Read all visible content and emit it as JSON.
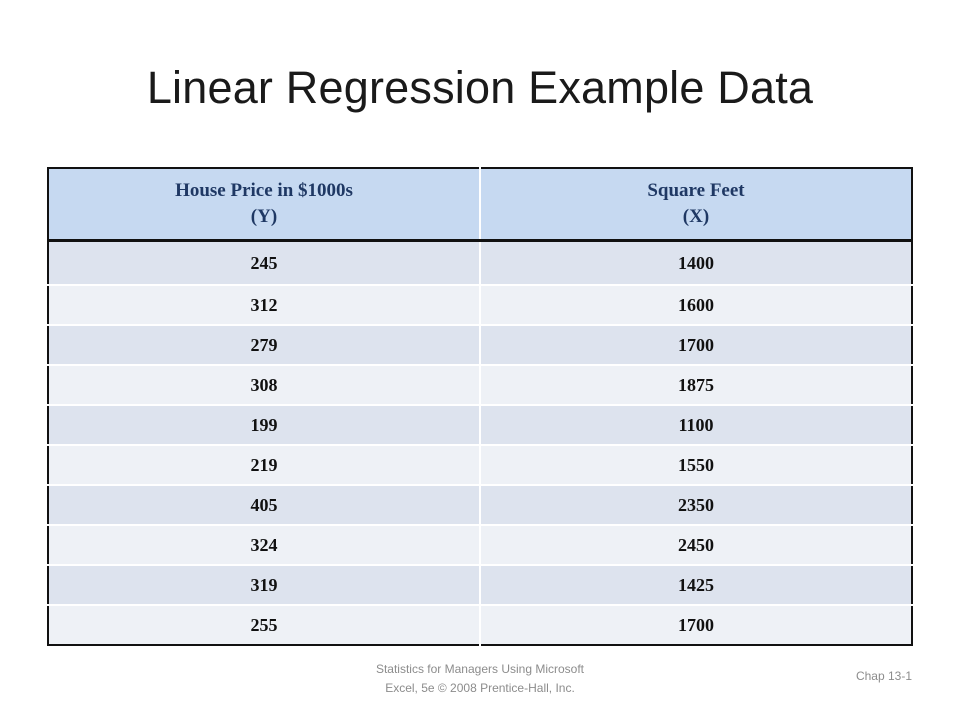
{
  "slide": {
    "title": "Linear Regression Example Data"
  },
  "table": {
    "headers": [
      {
        "line1": "House Price in $1000s",
        "line2": "(Y)"
      },
      {
        "line1": "Square Feet",
        "line2": "(X)"
      }
    ],
    "rows": [
      {
        "price": "245",
        "sqft": "1400"
      },
      {
        "price": "312",
        "sqft": "1600"
      },
      {
        "price": "279",
        "sqft": "1700"
      },
      {
        "price": "308",
        "sqft": "1875"
      },
      {
        "price": "199",
        "sqft": "1100"
      },
      {
        "price": "219",
        "sqft": "1550"
      },
      {
        "price": "405",
        "sqft": "2350"
      },
      {
        "price": "324",
        "sqft": "2450"
      },
      {
        "price": "319",
        "sqft": "1425"
      },
      {
        "price": "255",
        "sqft": "1700"
      }
    ]
  },
  "footer": {
    "source_line1": "Statistics for Managers Using Microsoft",
    "source_line2": "Excel, 5e © 2008 Prentice-Hall, Inc.",
    "page_label": "Chap 13-1"
  },
  "colors": {
    "header_bg": "#c6d9f1",
    "header_text": "#1f3864",
    "row_odd_bg": "#dde3ee",
    "row_even_bg": "#eef1f6",
    "border": "#111111"
  }
}
